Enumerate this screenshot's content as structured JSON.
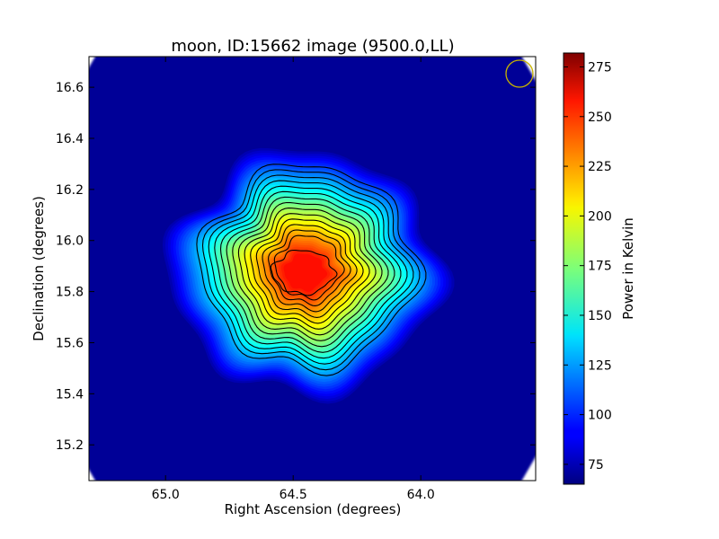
{
  "chart_data": {
    "type": "heatmap",
    "title": "moon, ID:15662 image (9500.0,LL)",
    "xlabel": "Right Ascension (degrees)",
    "ylabel": "Declination (degrees)",
    "xlim": [
      65.3,
      63.55
    ],
    "ylim": [
      15.06,
      16.72
    ],
    "x_axis_reversed": true,
    "x_ticks": [
      {
        "value": 65.0,
        "label": "65.0"
      },
      {
        "value": 64.5,
        "label": "64.5"
      },
      {
        "value": 64.0,
        "label": "64.0"
      }
    ],
    "y_ticks": [
      {
        "value": 15.2,
        "label": "15.2"
      },
      {
        "value": 15.4,
        "label": "15.4"
      },
      {
        "value": 15.6,
        "label": "15.6"
      },
      {
        "value": 15.8,
        "label": "15.8"
      },
      {
        "value": 16.0,
        "label": "16.0"
      },
      {
        "value": 16.2,
        "label": "16.2"
      },
      {
        "value": 16.4,
        "label": "16.4"
      },
      {
        "value": 16.6,
        "label": "16.6"
      }
    ],
    "colorbar": {
      "label": "Power in Kelvin",
      "colormap": "jet",
      "range": [
        65,
        282
      ],
      "ticks": [
        {
          "value": 75,
          "label": "75"
        },
        {
          "value": 100,
          "label": "100"
        },
        {
          "value": 125,
          "label": "125"
        },
        {
          "value": 150,
          "label": "150"
        },
        {
          "value": 175,
          "label": "175"
        },
        {
          "value": 200,
          "label": "200"
        },
        {
          "value": 225,
          "label": "225"
        },
        {
          "value": 250,
          "label": "250"
        },
        {
          "value": 275,
          "label": "275"
        }
      ]
    },
    "source": {
      "center_ra": 64.44,
      "center_dec": 15.89,
      "peak_kelvin": 280,
      "background_kelvin": 70,
      "contour_count": 14
    },
    "beam_circle_color": "#c8b400",
    "grid": false,
    "legend": "none"
  }
}
